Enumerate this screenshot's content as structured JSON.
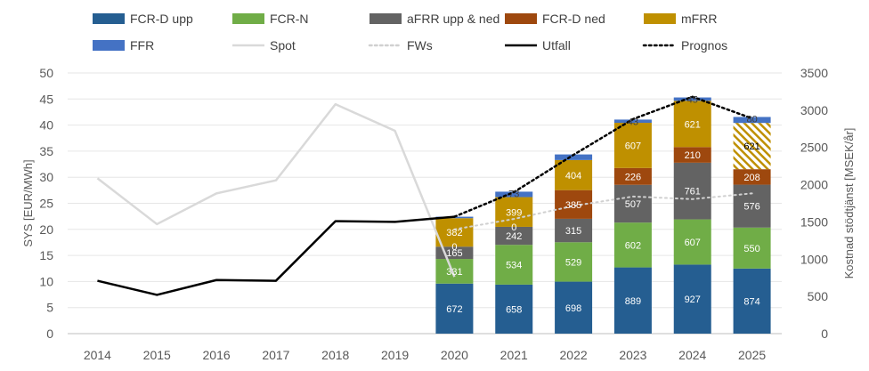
{
  "chart_data": {
    "type": "bar",
    "title": "",
    "ylabel_left": "SYS [EUR/MWh]",
    "ylabel_right": "Kostnad stödtjänst [MSEK/år]",
    "x": [
      "2014",
      "2015",
      "2016",
      "2017",
      "2018",
      "2019",
      "2020",
      "2021",
      "2022",
      "2023",
      "2024",
      "2025"
    ],
    "ylim_left": [
      0,
      50
    ],
    "yticks_left": [
      "0",
      "5",
      "10",
      "15",
      "20",
      "25",
      "30",
      "35",
      "40",
      "45",
      "50"
    ],
    "ylim_right": [
      0,
      3500
    ],
    "yticks_right": [
      "0",
      "500",
      "1000",
      "1500",
      "2000",
      "2500",
      "3000",
      "3500"
    ],
    "grid": true,
    "legend_position": "top",
    "stacked_series": [
      {
        "name": "FCR-D upp",
        "color": "#255e91",
        "axis": "right",
        "values": [
          null,
          null,
          null,
          null,
          null,
          null,
          672,
          658,
          698,
          889,
          927,
          874
        ],
        "labels": [
          null,
          null,
          null,
          null,
          null,
          null,
          "672",
          "658",
          "698",
          "889",
          "927",
          "874"
        ]
      },
      {
        "name": "FCR-N",
        "color": "#70ad47",
        "axis": "right",
        "values": [
          null,
          null,
          null,
          null,
          null,
          null,
          331,
          534,
          529,
          602,
          607,
          550
        ],
        "labels": [
          null,
          null,
          null,
          null,
          null,
          null,
          "331",
          "534",
          "529",
          "602",
          "607",
          "550"
        ]
      },
      {
        "name": "aFRR upp & ned",
        "color": "#636363",
        "axis": "right",
        "values": [
          null,
          null,
          null,
          null,
          null,
          null,
          165,
          242,
          315,
          507,
          761,
          576
        ],
        "labels": [
          null,
          null,
          null,
          null,
          null,
          null,
          "165",
          "242",
          "315",
          "507",
          "761",
          "576"
        ]
      },
      {
        "name": "FCR-D ned",
        "color": "#9e480e",
        "axis": "right",
        "values": [
          null,
          null,
          null,
          null,
          null,
          null,
          0,
          0,
          385,
          226,
          210,
          208
        ],
        "labels": [
          null,
          null,
          null,
          null,
          null,
          null,
          "0",
          "0",
          "385",
          "226",
          "210",
          "208"
        ]
      },
      {
        "name": "mFRR",
        "color": "#bf9000",
        "axis": "right",
        "values": [
          null,
          null,
          null,
          null,
          null,
          null,
          382,
          399,
          404,
          607,
          621,
          621
        ],
        "labels": [
          null,
          null,
          null,
          null,
          null,
          null,
          "382",
          "399",
          "404",
          "607",
          "621",
          "621"
        ],
        "hatched_categories": [
          "2025"
        ]
      },
      {
        "name": "FFR",
        "color": "#4472c4",
        "axis": "right",
        "values": [
          null,
          null,
          null,
          null,
          null,
          null,
          20,
          73,
          75,
          43,
          45,
          80
        ],
        "labels": [
          null,
          null,
          null,
          null,
          null,
          null,
          null,
          "73",
          null,
          "43",
          "45",
          "80"
        ]
      }
    ],
    "line_series": [
      {
        "name": "Spot",
        "color": "#d9d9d9",
        "style": "solid",
        "axis": "left",
        "values": [
          29.8,
          21.0,
          26.9,
          29.4,
          44.0,
          38.9,
          10.9,
          null,
          null,
          null,
          null,
          null
        ]
      },
      {
        "name": "FWs",
        "color": "#d0d0d0",
        "style": "dotted",
        "axis": "left",
        "values": [
          null,
          null,
          null,
          null,
          null,
          null,
          20.0,
          22.0,
          24.5,
          26.3,
          25.8,
          26.9
        ]
      },
      {
        "name": "Utfall",
        "color": "#000000",
        "style": "solid",
        "axis": "right",
        "values": [
          710,
          520,
          720,
          710,
          1510,
          1500,
          1570,
          null,
          null,
          null,
          null,
          null
        ]
      },
      {
        "name": "Prognos",
        "color": "#000000",
        "style": "dotted",
        "axis": "right",
        "values": [
          null,
          null,
          null,
          null,
          null,
          null,
          1570,
          1900,
          2400,
          2880,
          3180,
          2890
        ]
      }
    ],
    "legend": [
      [
        "FCR-D upp",
        "FCR-N",
        "aFRR upp & ned",
        "FCR-D ned",
        "mFRR"
      ],
      [
        "FFR",
        "Spot",
        "FWs",
        "Utfall",
        "Prognos"
      ]
    ]
  }
}
